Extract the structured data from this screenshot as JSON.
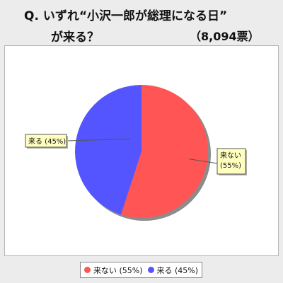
{
  "title": {
    "line1": "Q. いずれ“小沢一郎が総理になる日”",
    "line2": "が来る？",
    "vote_count": "（8,094票）"
  },
  "chart_data": {
    "type": "pie",
    "title": "Q. いずれ“小沢一郎が総理になる日”が来る？",
    "categories": [
      "来ない",
      "来る"
    ],
    "values": [
      55,
      45
    ],
    "unit": "%",
    "colors": [
      "#ff5555",
      "#5555ff"
    ],
    "data_labels": [
      "来ない\n(55%)",
      "来る (45%)"
    ],
    "legend": {
      "position": "bottom",
      "entries": [
        "来ない (55%)",
        "来る (45%)"
      ]
    }
  }
}
